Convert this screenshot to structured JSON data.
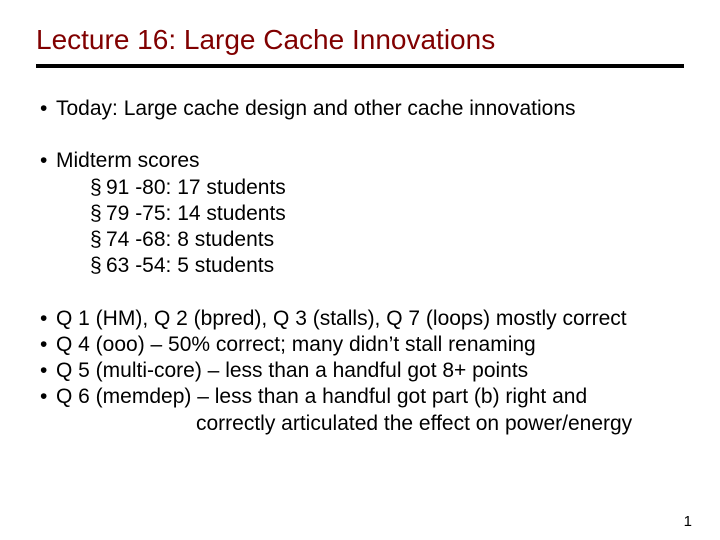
{
  "title": "Lecture 16: Large Cache Innovations",
  "title_color": "#800000",
  "rule_color": "#000000",
  "text_color": "#000000",
  "background_color": "#ffffff",
  "fontsize_title": 28,
  "fontsize_body": 21,
  "bullet1": "Today: Large cache design and other cache innovations",
  "bullet2": "Midterm scores",
  "scores": [
    "91 -80: 17 students",
    "79 -75: 14 students",
    "74 -68:  8 students",
    "63 -54:  5 students"
  ],
  "q_lines": [
    "Q 1 (HM), Q 2 (bpred), Q 3 (stalls), Q 7 (loops) mostly correct",
    "Q 4 (ooo) – 50% correct; many didn’t stall renaming",
    "Q 5 (multi-core) – less than a handful got 8+ points",
    "Q 6 (memdep) – less than a handful got part (b) right and"
  ],
  "q6_cont": "correctly articulated the effect on power/energy",
  "page_number": "1",
  "bullet_glyph": "•",
  "sub_glyph": "§"
}
